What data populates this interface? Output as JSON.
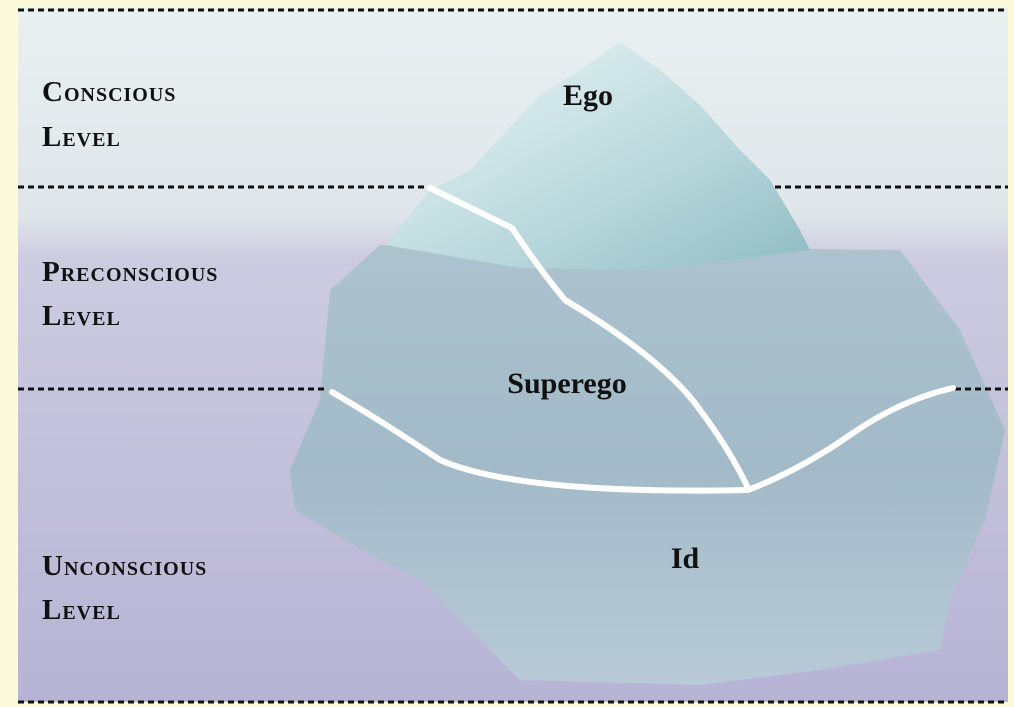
{
  "levels": [
    {
      "lines": [
        "Conscious",
        "Level"
      ]
    },
    {
      "lines": [
        "Preconscious",
        "Level"
      ]
    },
    {
      "lines": [
        "Unconscious",
        "Level"
      ]
    }
  ],
  "regions": [
    {
      "label": "Ego"
    },
    {
      "label": "Superego"
    },
    {
      "label": "Id"
    }
  ]
}
